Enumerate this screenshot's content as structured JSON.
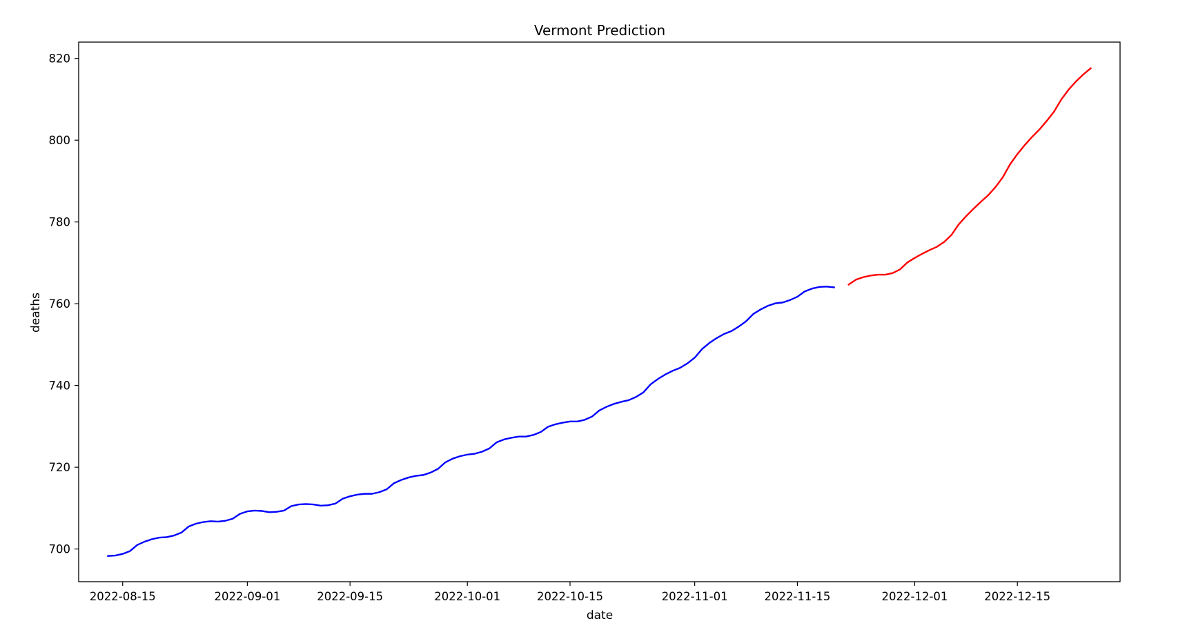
{
  "chart_data": {
    "type": "line",
    "title": "Vermont Prediction",
    "xlabel": "date",
    "ylabel": "deaths",
    "x_axis_type": "date",
    "xlim": [
      "2022-08-09",
      "2022-12-29"
    ],
    "ylim": [
      692,
      824
    ],
    "grid": false,
    "x_ticks": [
      "2022-08-15",
      "2022-09-01",
      "2022-09-15",
      "2022-10-01",
      "2022-10-15",
      "2022-11-01",
      "2022-11-15",
      "2022-12-01",
      "2022-12-15"
    ],
    "y_ticks": [
      700,
      720,
      740,
      760,
      780,
      800,
      820
    ],
    "series": [
      {
        "color": "#0000ff",
        "points": [
          [
            "2022-08-13",
            698.3
          ],
          [
            "2022-08-14",
            698.4
          ],
          [
            "2022-08-15",
            698.8
          ],
          [
            "2022-08-16",
            699.5
          ],
          [
            "2022-08-17",
            701.0
          ],
          [
            "2022-08-18",
            701.8
          ],
          [
            "2022-08-19",
            702.4
          ],
          [
            "2022-08-20",
            702.8
          ],
          [
            "2022-08-21",
            702.9
          ],
          [
            "2022-08-22",
            703.3
          ],
          [
            "2022-08-23",
            704.0
          ],
          [
            "2022-08-24",
            705.5
          ],
          [
            "2022-08-25",
            706.2
          ],
          [
            "2022-08-26",
            706.6
          ],
          [
            "2022-08-27",
            706.8
          ],
          [
            "2022-08-28",
            706.7
          ],
          [
            "2022-08-29",
            706.9
          ],
          [
            "2022-08-30",
            707.4
          ],
          [
            "2022-08-31",
            708.6
          ],
          [
            "2022-09-01",
            709.2
          ],
          [
            "2022-09-02",
            709.4
          ],
          [
            "2022-09-03",
            709.3
          ],
          [
            "2022-09-04",
            709.0
          ],
          [
            "2022-09-05",
            709.1
          ],
          [
            "2022-09-06",
            709.4
          ],
          [
            "2022-09-07",
            710.5
          ],
          [
            "2022-09-08",
            710.9
          ],
          [
            "2022-09-09",
            711.0
          ],
          [
            "2022-09-10",
            710.9
          ],
          [
            "2022-09-11",
            710.6
          ],
          [
            "2022-09-12",
            710.7
          ],
          [
            "2022-09-13",
            711.1
          ],
          [
            "2022-09-14",
            712.3
          ],
          [
            "2022-09-15",
            712.9
          ],
          [
            "2022-09-16",
            713.3
          ],
          [
            "2022-09-17",
            713.5
          ],
          [
            "2022-09-18",
            713.5
          ],
          [
            "2022-09-19",
            713.9
          ],
          [
            "2022-09-20",
            714.6
          ],
          [
            "2022-09-21",
            716.1
          ],
          [
            "2022-09-22",
            716.9
          ],
          [
            "2022-09-23",
            717.5
          ],
          [
            "2022-09-24",
            717.9
          ],
          [
            "2022-09-25",
            718.1
          ],
          [
            "2022-09-26",
            718.7
          ],
          [
            "2022-09-27",
            719.6
          ],
          [
            "2022-09-28",
            721.2
          ],
          [
            "2022-09-29",
            722.1
          ],
          [
            "2022-09-30",
            722.7
          ],
          [
            "2022-10-01",
            723.1
          ],
          [
            "2022-10-02",
            723.3
          ],
          [
            "2022-10-03",
            723.8
          ],
          [
            "2022-10-04",
            724.6
          ],
          [
            "2022-10-05",
            726.1
          ],
          [
            "2022-10-06",
            726.8
          ],
          [
            "2022-10-07",
            727.2
          ],
          [
            "2022-10-08",
            727.5
          ],
          [
            "2022-10-09",
            727.5
          ],
          [
            "2022-10-10",
            727.9
          ],
          [
            "2022-10-11",
            728.6
          ],
          [
            "2022-10-12",
            729.9
          ],
          [
            "2022-10-13",
            730.5
          ],
          [
            "2022-10-14",
            730.9
          ],
          [
            "2022-10-15",
            731.2
          ],
          [
            "2022-10-16",
            731.2
          ],
          [
            "2022-10-17",
            731.6
          ],
          [
            "2022-10-18",
            732.4
          ],
          [
            "2022-10-19",
            733.9
          ],
          [
            "2022-10-20",
            734.8
          ],
          [
            "2022-10-21",
            735.5
          ],
          [
            "2022-10-22",
            736.0
          ],
          [
            "2022-10-23",
            736.4
          ],
          [
            "2022-10-24",
            737.2
          ],
          [
            "2022-10-25",
            738.3
          ],
          [
            "2022-10-26",
            740.3
          ],
          [
            "2022-10-27",
            741.6
          ],
          [
            "2022-10-28",
            742.7
          ],
          [
            "2022-10-29",
            743.6
          ],
          [
            "2022-10-30",
            744.3
          ],
          [
            "2022-10-31",
            745.4
          ],
          [
            "2022-11-01",
            746.8
          ],
          [
            "2022-11-02",
            748.9
          ],
          [
            "2022-11-03",
            750.4
          ],
          [
            "2022-11-04",
            751.6
          ],
          [
            "2022-11-05",
            752.6
          ],
          [
            "2022-11-06",
            753.3
          ],
          [
            "2022-11-07",
            754.4
          ],
          [
            "2022-11-08",
            755.7
          ],
          [
            "2022-11-09",
            757.5
          ],
          [
            "2022-11-10",
            758.6
          ],
          [
            "2022-11-11",
            759.5
          ],
          [
            "2022-11-12",
            760.1
          ],
          [
            "2022-11-13",
            760.3
          ],
          [
            "2022-11-14",
            760.9
          ],
          [
            "2022-11-15",
            761.7
          ],
          [
            "2022-11-16",
            763.0
          ],
          [
            "2022-11-17",
            763.7
          ],
          [
            "2022-11-18",
            764.1
          ],
          [
            "2022-11-19",
            764.2
          ],
          [
            "2022-11-20",
            764.0
          ]
        ]
      },
      {
        "color": "#ff0000",
        "points": [
          [
            "2022-11-22",
            764.7
          ],
          [
            "2022-11-23",
            765.9
          ],
          [
            "2022-11-24",
            766.5
          ],
          [
            "2022-11-25",
            766.9
          ],
          [
            "2022-11-26",
            767.1
          ],
          [
            "2022-11-27",
            767.1
          ],
          [
            "2022-11-28",
            767.5
          ],
          [
            "2022-11-29",
            768.4
          ],
          [
            "2022-11-30",
            770.1
          ],
          [
            "2022-12-01",
            771.2
          ],
          [
            "2022-12-02",
            772.2
          ],
          [
            "2022-12-03",
            773.1
          ],
          [
            "2022-12-04",
            773.9
          ],
          [
            "2022-12-05",
            775.1
          ],
          [
            "2022-12-06",
            776.8
          ],
          [
            "2022-12-07",
            779.4
          ],
          [
            "2022-12-08",
            781.4
          ],
          [
            "2022-12-09",
            783.2
          ],
          [
            "2022-12-10",
            784.9
          ],
          [
            "2022-12-11",
            786.5
          ],
          [
            "2022-12-12",
            788.5
          ],
          [
            "2022-12-13",
            790.9
          ],
          [
            "2022-12-14",
            794.1
          ],
          [
            "2022-12-15",
            796.6
          ],
          [
            "2022-12-16",
            798.8
          ],
          [
            "2022-12-17",
            800.8
          ],
          [
            "2022-12-18",
            802.6
          ],
          [
            "2022-12-19",
            804.7
          ],
          [
            "2022-12-20",
            807.0
          ],
          [
            "2022-12-21",
            810.0
          ],
          [
            "2022-12-22",
            812.4
          ],
          [
            "2022-12-23",
            814.4
          ],
          [
            "2022-12-24",
            816.1
          ],
          [
            "2022-12-25",
            817.6
          ]
        ]
      }
    ]
  }
}
